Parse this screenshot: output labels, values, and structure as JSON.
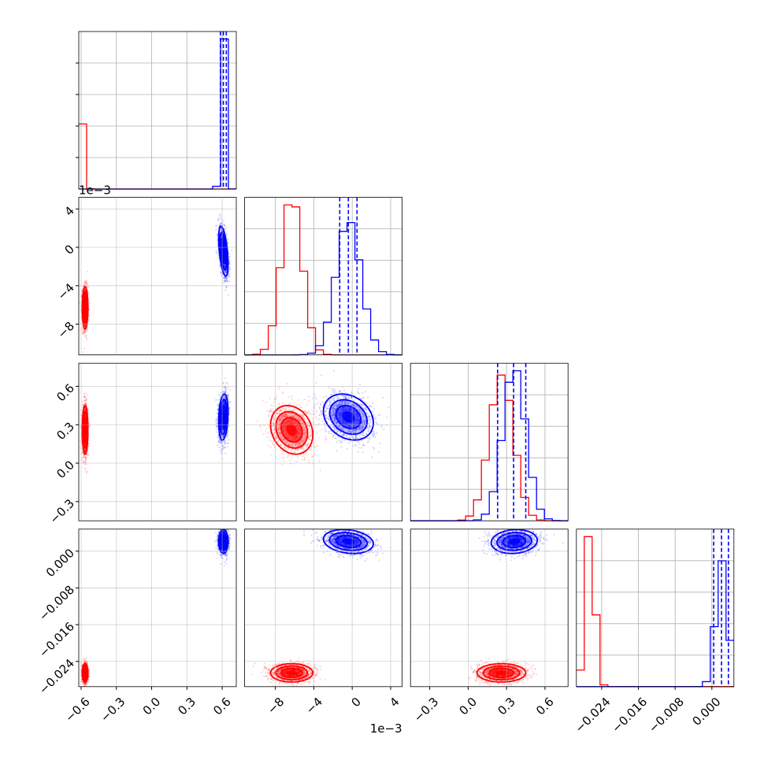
{
  "chart_data": {
    "type": "corner",
    "grid": true,
    "series": [
      {
        "color": "#ff0000",
        "means": [
          -0.566,
          -0.0063,
          0.26,
          -0.0265
        ],
        "sds": [
          0.012,
          0.0011,
          0.095,
          0.001
        ],
        "corr": [
          [
            1,
            0,
            0,
            0
          ],
          [
            0,
            1,
            -0.2,
            0
          ],
          [
            0,
            -0.2,
            1,
            0
          ],
          [
            0,
            0,
            0,
            1
          ]
        ]
      },
      {
        "color": "#0000ff",
        "means": [
          0.61,
          -0.0004,
          0.36,
          0.0021
        ],
        "sds": [
          0.02,
          0.0013,
          0.09,
          0.0013
        ],
        "corr": [
          [
            1,
            -0.5,
            0.2,
            0
          ],
          [
            -0.5,
            1,
            -0.25,
            -0.2
          ],
          [
            0.2,
            -0.25,
            1,
            0.1
          ],
          [
            0,
            -0.2,
            0.1,
            1
          ]
        ],
        "quantiles": [
          [
            0.585,
            0.61,
            0.635
          ],
          [
            -0.0013,
            -0.0004,
            0.0005
          ],
          [
            0.23,
            0.355,
            0.45
          ],
          [
            0.0004,
            0.0021,
            0.0036
          ]
        ]
      }
    ],
    "parameters": [
      {
        "range": [
          -0.62,
          0.72
        ],
        "ticks": [
          -0.6,
          -0.3,
          0.0,
          0.3,
          0.6
        ],
        "tick_labels": [
          "−0.6",
          "−0.3",
          "0.0",
          "0.3",
          "0.6"
        ],
        "offset_label": ""
      },
      {
        "range": [
          -0.0112,
          0.0052
        ],
        "ticks": [
          -0.008,
          -0.004,
          0.0,
          0.004
        ],
        "tick_labels": [
          "−8",
          "−4",
          "0",
          "4"
        ],
        "offset_label": "1e−3"
      },
      {
        "range": [
          -0.45,
          0.78
        ],
        "ticks": [
          -0.3,
          0.0,
          0.3,
          0.6
        ],
        "tick_labels": [
          "−0.3",
          "0.0",
          "0.3",
          "0.6"
        ],
        "offset_label": ""
      },
      {
        "range": [
          -0.0295,
          0.0048
        ],
        "ticks": [
          -0.024,
          -0.016,
          -0.008,
          0.0
        ],
        "tick_labels": [
          "−0.024",
          "−0.016",
          "−0.008",
          "0.000"
        ],
        "offset_label": ""
      }
    ]
  }
}
